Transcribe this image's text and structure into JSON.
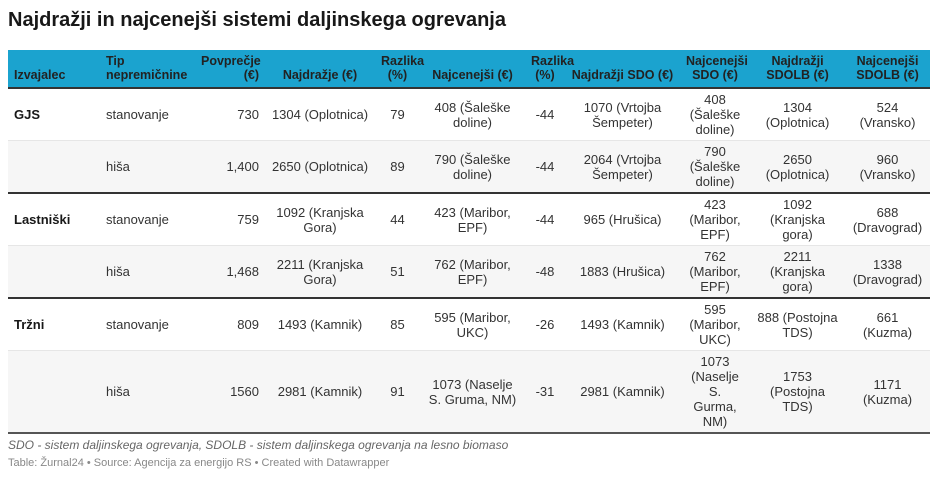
{
  "title": "Najdražji in najcenejši sistemi daljinskega ogrevanja",
  "headers": [
    "Izvajalec",
    "Tip nepremičnine",
    "Povprečje (€)",
    "Najdražje (€)",
    "Razlika (%)",
    "Najcenejši (€)",
    "Razlika (%)",
    "Najdražji SDO (€)",
    "Najcenejši SDO (€)",
    "Najdražji SDOLB (€)",
    "Najcenejši SDOLB (€)"
  ],
  "rows": [
    [
      "GJS",
      "stanovanje",
      "730",
      "1304 (Oplotnica)",
      "79",
      "408 (Šaleške doline)",
      "-44",
      "1070 (Vrtojba Šempeter)",
      "408 (Šaleške doline)",
      "1304 (Oplotnica)",
      "524 (Vransko)"
    ],
    [
      "",
      "hiša",
      "1,400",
      "2650 (Oplotnica)",
      "89",
      "790 (Šaleške doline)",
      "-44",
      "2064 (Vrtojba Šempeter)",
      "790 (Šaleške doline)",
      "2650 (Oplotnica)",
      "960 (Vransko)"
    ],
    [
      "Lastniški",
      "stanovanje",
      "759",
      "1092 (Kranjska Gora)",
      "44",
      "423 (Maribor, EPF)",
      "-44",
      "965 (Hrušica)",
      "423 (Maribor, EPF)",
      "1092 (Kranjska gora)",
      "688 (Dravograd)"
    ],
    [
      "",
      "hiša",
      "1,468",
      "2211 (Kranjska Gora)",
      "51",
      "762 (Maribor, EPF)",
      "-48",
      "1883 (Hrušica)",
      "762 (Maribor, EPF)",
      "2211 (Kranjska gora)",
      "1338 (Dravograd)"
    ],
    [
      "Tržni",
      "stanovanje",
      "809",
      "1493 (Kamnik)",
      "85",
      "595 (Maribor, UKC)",
      "-26",
      "1493 (Kamnik)",
      "595 (Maribor, UKC)",
      "888 (Postojna TDS)",
      "661 (Kuzma)"
    ],
    [
      "",
      "hiša",
      "1560",
      "2981 (Kamnik)",
      "91",
      "1073 (Naselje S. Gruma, NM)",
      "-31",
      "2981 (Kamnik)",
      "1073 (Naselje S. Gurma, NM)",
      "1753 (Postojna TDS)",
      "1171 (Kuzma)"
    ]
  ],
  "notes": "SDO - sistem daljinskega ogrevanja, SDOLB - sistem daljinskega ogrevanja na lesno biomaso",
  "footer": "Table: Žurnal24 • Source: Agencija za energijo RS • Created with Datawrapper",
  "colors": {
    "header_bg": "#1ba3cf",
    "alt_row_bg": "#f6f6f6"
  }
}
